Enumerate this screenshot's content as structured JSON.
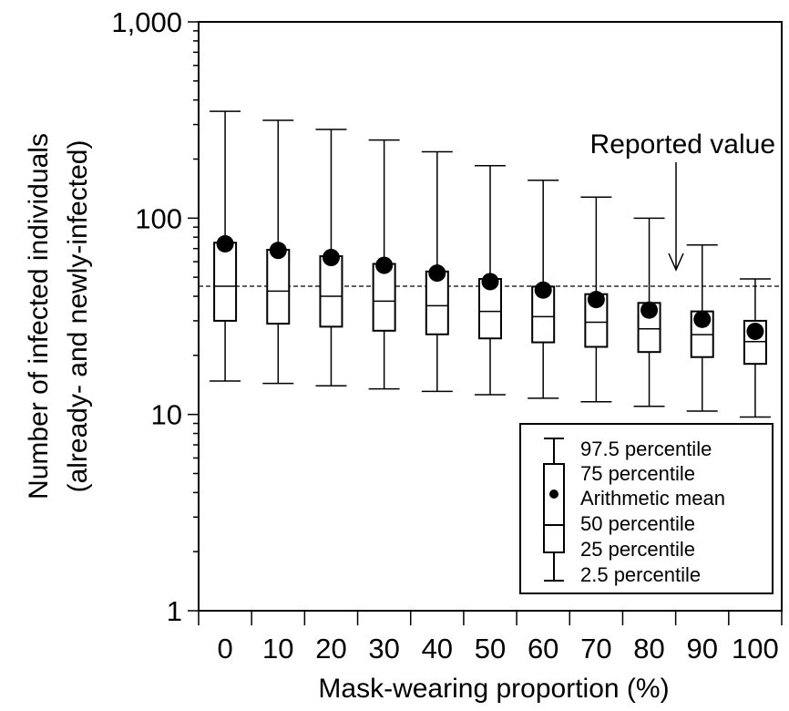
{
  "chart_data": {
    "type": "boxplot",
    "xlabel": "Mask-wearing proportion (%)",
    "ylabel_line1": "Number of infected individuals",
    "ylabel_line2": "(already- and newly-infected)",
    "y_scale": "log",
    "ylim": [
      1,
      1000
    ],
    "y_ticks": [
      1,
      10,
      100,
      1000
    ],
    "y_tick_labels": [
      "1",
      "10",
      "100",
      "1,000"
    ],
    "categories": [
      "0",
      "10",
      "20",
      "30",
      "40",
      "50",
      "60",
      "70",
      "80",
      "90",
      "100"
    ],
    "p2_5": [
      14.8,
      14.4,
      14.0,
      13.5,
      13.1,
      12.6,
      12.1,
      11.6,
      11.0,
      10.4,
      9.7
    ],
    "p25": [
      30,
      29,
      28,
      26.7,
      25.6,
      24.4,
      23.3,
      22.1,
      20.8,
      19.6,
      18.1
    ],
    "p50": [
      45,
      42.5,
      40,
      37.8,
      35.8,
      33.5,
      31.5,
      29.5,
      27.3,
      25.5,
      23.5
    ],
    "p75": [
      75,
      69,
      64,
      58.5,
      53.5,
      49,
      44.8,
      41,
      37,
      33.5,
      30
    ],
    "p97_5": [
      350,
      315,
      283,
      250,
      218,
      185,
      156,
      128,
      100,
      73,
      49
    ],
    "mean": [
      74,
      68.5,
      63,
      57.5,
      52.5,
      47.5,
      43,
      38.5,
      34,
      30.5,
      26.5
    ],
    "reported_value": 45,
    "annotation": "Reported value",
    "legend": {
      "position": "bottom-right",
      "items": [
        "97.5 percentile",
        "75 percentile",
        "Arithmetic mean",
        "50 percentile",
        "25 percentile",
        "2.5 percentile"
      ]
    }
  }
}
